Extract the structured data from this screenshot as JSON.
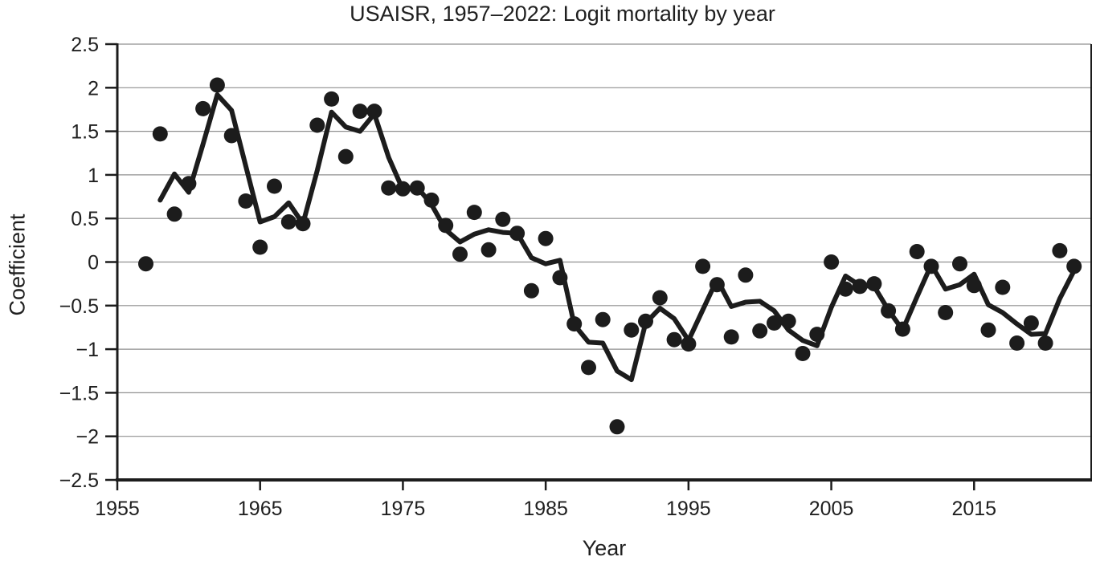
{
  "page": {
    "background": "#ffffff"
  },
  "chart_data": {
    "type": "scatter",
    "title": "USAISR, 1957–2022: Logit mortality by year",
    "xlabel": "Year",
    "ylabel": "Coefficient",
    "xlim": [
      1955,
      2023.2
    ],
    "ylim": [
      -2.5,
      2.5
    ],
    "grid": "horizontal gray lines at every 0.5",
    "legend": "none",
    "colors": {
      "ink": "#1c1c1c",
      "grid": "#8f8f8f",
      "background": "#ffffff"
    },
    "x_ticks": [
      1955,
      1965,
      1975,
      1985,
      1995,
      2005,
      2015
    ],
    "y_ticks": [
      {
        "v": 2.5,
        "label": "2.5"
      },
      {
        "v": 2,
        "label": "2"
      },
      {
        "v": 1.5,
        "label": "1.5"
      },
      {
        "v": 1,
        "label": "1"
      },
      {
        "v": 0.5,
        "label": "0.5"
      },
      {
        "v": 0,
        "label": "0"
      },
      {
        "v": -0.5,
        "label": "−0.5"
      },
      {
        "v": -1,
        "label": "−1"
      },
      {
        "v": -1.5,
        "label": "−1.5"
      },
      {
        "v": -2,
        "label": "−2"
      },
      {
        "v": -2.5,
        "label": "−2.5"
      }
    ],
    "series": [
      {
        "name": "yearly-coefficient-points",
        "type": "scatter",
        "marker": "filled-circle",
        "x": [
          1957,
          1958,
          1959,
          1960,
          1961,
          1962,
          1963,
          1964,
          1965,
          1966,
          1967,
          1968,
          1969,
          1970,
          1971,
          1972,
          1973,
          1974,
          1975,
          1976,
          1977,
          1978,
          1979,
          1980,
          1981,
          1982,
          1983,
          1984,
          1985,
          1986,
          1987,
          1988,
          1989,
          1990,
          1991,
          1992,
          1993,
          1994,
          1995,
          1996,
          1997,
          1998,
          1999,
          2000,
          2001,
          2002,
          2003,
          2004,
          2005,
          2006,
          2007,
          2008,
          2009,
          2010,
          2011,
          2012,
          2013,
          2014,
          2015,
          2016,
          2017,
          2018,
          2019,
          2020,
          2021,
          2022
        ],
        "y": [
          -0.02,
          1.47,
          0.55,
          0.9,
          1.76,
          2.03,
          1.45,
          0.7,
          0.17,
          0.87,
          0.46,
          0.44,
          1.57,
          1.87,
          1.21,
          1.73,
          1.73,
          0.85,
          0.84,
          0.85,
          0.71,
          0.42,
          0.09,
          0.57,
          0.14,
          0.49,
          0.33,
          -0.33,
          0.27,
          -0.18,
          -0.71,
          -1.21,
          -0.66,
          -1.89,
          -0.78,
          -0.68,
          -0.41,
          -0.89,
          -0.94,
          -0.05,
          -0.26,
          -0.86,
          -0.15,
          -0.79,
          -0.7,
          -0.68,
          -1.05,
          -0.83,
          0.0,
          -0.31,
          -0.28,
          -0.25,
          -0.56,
          -0.77,
          0.12,
          -0.05,
          -0.58,
          -0.02,
          -0.27,
          -0.78,
          -0.29,
          -0.93,
          -0.7,
          -0.93,
          0.13,
          -0.05
        ]
      },
      {
        "name": "smoothed-trend-line",
        "type": "line",
        "x": [
          1958,
          1959,
          1960,
          1961,
          1962,
          1963,
          1964,
          1965,
          1966,
          1967,
          1968,
          1969,
          1970,
          1971,
          1972,
          1973,
          1974,
          1975,
          1976,
          1977,
          1978,
          1979,
          1980,
          1981,
          1982,
          1983,
          1984,
          1985,
          1986,
          1987,
          1988,
          1989,
          1990,
          1991,
          1992,
          1993,
          1994,
          1995,
          1996,
          1997,
          1998,
          1999,
          2000,
          2001,
          2002,
          2003,
          2004,
          2005,
          2006,
          2007,
          2008,
          2009,
          2010,
          2011,
          2012,
          2013,
          2014,
          2015,
          2016,
          2017,
          2018,
          2019,
          2020,
          2021,
          2022
        ],
        "y": [
          0.71,
          1.01,
          0.8,
          1.35,
          1.92,
          1.74,
          1.1,
          0.46,
          0.52,
          0.68,
          0.44,
          1.05,
          1.72,
          1.55,
          1.5,
          1.7,
          1.2,
          0.83,
          0.86,
          0.66,
          0.37,
          0.23,
          0.32,
          0.37,
          0.34,
          0.33,
          0.05,
          -0.02,
          0.02,
          -0.72,
          -0.92,
          -0.93,
          -1.25,
          -1.35,
          -0.7,
          -0.53,
          -0.65,
          -0.9,
          -0.55,
          -0.2,
          -0.51,
          -0.46,
          -0.45,
          -0.56,
          -0.78,
          -0.9,
          -0.96,
          -0.52,
          -0.16,
          -0.27,
          -0.28,
          -0.55,
          -0.78,
          -0.4,
          -0.03,
          -0.31,
          -0.26,
          -0.14,
          -0.49,
          -0.58,
          -0.71,
          -0.83,
          -0.82,
          -0.42,
          -0.1
        ]
      }
    ]
  }
}
